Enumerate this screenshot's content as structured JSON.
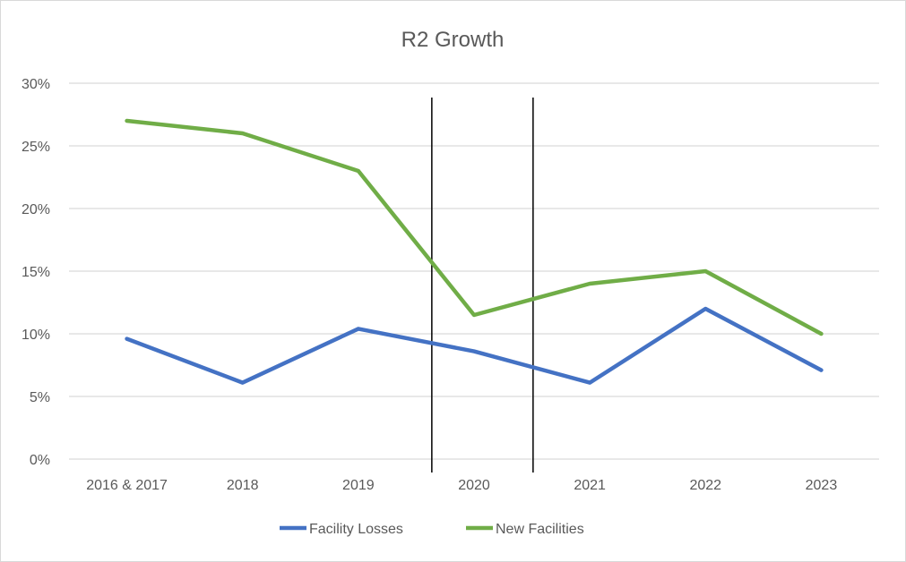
{
  "chart_data": {
    "type": "line",
    "title": "R2 Growth",
    "xlabel": "",
    "ylabel": "",
    "categories": [
      "2016 & 2017",
      "2018",
      "2019",
      "2020",
      "2021",
      "2022",
      "2023"
    ],
    "ylim": [
      0,
      0.3
    ],
    "yticks": [
      0,
      0.05,
      0.1,
      0.15,
      0.2,
      0.25,
      0.3
    ],
    "ytick_labels": [
      "0%",
      "5%",
      "10%",
      "15%",
      "20%",
      "25%",
      "30%"
    ],
    "grid": true,
    "legend_position": "bottom",
    "series": [
      {
        "name": "Facility Losses",
        "color": "#4472c4",
        "values": [
          0.096,
          0.061,
          0.104,
          0.086,
          0.061,
          0.12,
          0.071
        ]
      },
      {
        "name": "New Facilities",
        "color": "#70ad47",
        "values": [
          0.27,
          0.26,
          0.23,
          0.115,
          0.14,
          0.15,
          0.1
        ]
      }
    ],
    "annotations": [
      {
        "type": "vertical-line",
        "between": [
          "2019",
          "2020"
        ],
        "color": "#000000"
      },
      {
        "type": "vertical-line",
        "between": [
          "2020",
          "2021"
        ],
        "color": "#000000"
      }
    ]
  }
}
